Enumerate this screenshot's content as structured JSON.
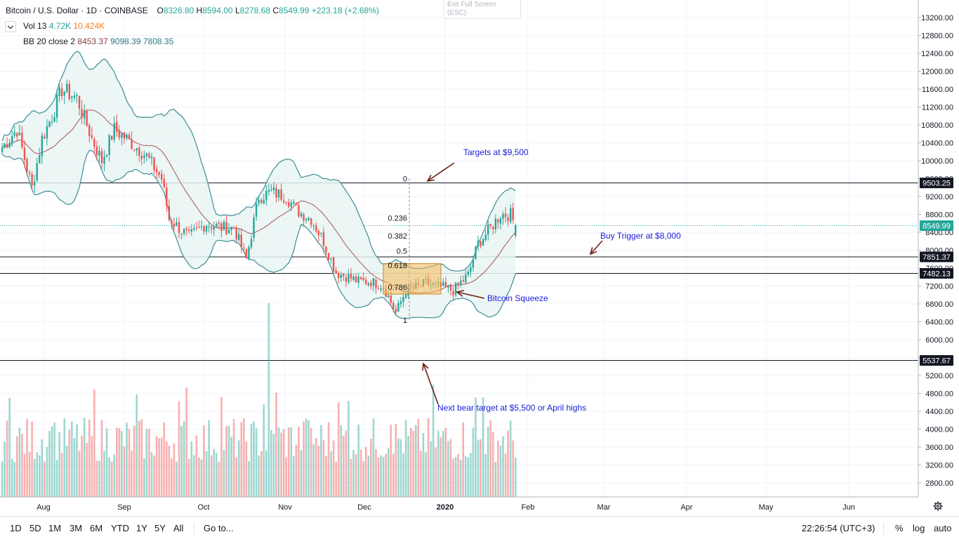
{
  "header": {
    "symbol": "Bitcoin / U.S. Dollar",
    "interval": "1D",
    "exchange": "COINBASE",
    "open_label": "O",
    "open": "8326.80",
    "high_label": "H",
    "high": "8594.00",
    "low_label": "L",
    "low": "8278.68",
    "close_label": "C",
    "close": "8549.99",
    "change": "+223.18 (+2.68%)",
    "vol_label": "Vol 13",
    "vol_value1": "4.72K",
    "vol_value2": "10.424K",
    "bb_label": "BB 20 close 2",
    "bb_mid": "8453.37",
    "bb_upper": "9098.39",
    "bb_lower": "7808.35"
  },
  "exit_fullscreen": {
    "line1": "Exit Full Screen",
    "line2": "(ESC)"
  },
  "colors": {
    "up": "#26a69a",
    "down": "#ef5350",
    "bb_mid": "#b36d6d",
    "bb_band": "#3e8d95",
    "bb_fill": "#e8f5f3",
    "annotation": "#1a1adc",
    "arrow": "#6d1f14",
    "fib_box": "#f6b955"
  },
  "chart_data": {
    "type": "candlestick",
    "symbol": "Bitcoin / U.S. Dollar",
    "interval": "1D",
    "y_axis": {
      "ticks": [
        13200,
        12800,
        12400,
        12000,
        11600,
        11200,
        10800,
        10400,
        10000,
        9600,
        9200,
        8800,
        8400,
        8000,
        7600,
        7200,
        6800,
        6400,
        6000,
        5600,
        5200,
        4800,
        4400,
        4000,
        3600,
        3200,
        2800
      ],
      "tick_labels": [
        "13200.00",
        "12800.00",
        "12400.00",
        "12000.00",
        "11600.00",
        "11200.00",
        "10800.00",
        "10400.00",
        "10000.00",
        "9600.00",
        "9200.00",
        "8800.00",
        "8400.00",
        "8000.00",
        "7600.00",
        "7200.00",
        "6800.00",
        "6400.00",
        "6000.00",
        "5600.00",
        "5200.00",
        "4800.00",
        "4400.00",
        "4000.00",
        "3600.00",
        "3200.00",
        "2800.00"
      ],
      "ylim": [
        2400,
        13400
      ]
    },
    "x_axis": {
      "tick_labels": [
        "Aug",
        "Sep",
        "Oct",
        "Nov",
        "Dec",
        "2020",
        "Feb",
        "Mar",
        "Apr",
        "May",
        "Jun"
      ]
    },
    "price_lines": [
      {
        "label": "9503.25",
        "value": 9503.25,
        "style": "solid"
      },
      {
        "label": "8549.99",
        "value": 8549.99,
        "style": "dotted",
        "current": true
      },
      {
        "label": "7851.37",
        "value": 7851.37,
        "style": "solid"
      },
      {
        "label": "7482.13",
        "value": 7482.13,
        "style": "solid"
      },
      {
        "label": "5537.67",
        "value": 5537.67,
        "style": "solid"
      }
    ],
    "fib_levels": [
      {
        "label": "0",
        "value": 9600
      },
      {
        "label": "0.236",
        "value": 8720
      },
      {
        "label": "0.382",
        "value": 8320
      },
      {
        "label": "0.5",
        "value": 7985
      },
      {
        "label": "0.618",
        "value": 7660
      },
      {
        "label": "0.786",
        "value": 7180
      },
      {
        "label": "1",
        "value": 6440
      }
    ],
    "annotations": [
      {
        "text": "Targets at $9,500"
      },
      {
        "text": "Buy Trigger at $8,000"
      },
      {
        "text": "Bitcoin Squeeze"
      },
      {
        "text": "Next bear target at $5,500 or April highs"
      }
    ],
    "series": [
      {
        "name": "price",
        "waypoints": [
          [
            0,
            10300
          ],
          [
            6,
            10700
          ],
          [
            12,
            9400
          ],
          [
            16,
            10500
          ],
          [
            20,
            11000
          ],
          [
            24,
            11600
          ],
          [
            30,
            11400
          ],
          [
            36,
            10500
          ],
          [
            40,
            10000
          ],
          [
            45,
            10700
          ],
          [
            52,
            10400
          ],
          [
            58,
            10100
          ],
          [
            64,
            9600
          ],
          [
            67,
            8700
          ],
          [
            75,
            8300
          ],
          [
            82,
            8600
          ],
          [
            88,
            8500
          ],
          [
            93,
            8500
          ],
          [
            98,
            7800
          ],
          [
            103,
            9200
          ],
          [
            108,
            9300
          ],
          [
            114,
            9200
          ],
          [
            118,
            8900
          ],
          [
            124,
            8700
          ],
          [
            129,
            8200
          ],
          [
            134,
            7500
          ],
          [
            139,
            7400
          ],
          [
            143,
            7300
          ],
          [
            148,
            7300
          ],
          [
            153,
            7200
          ],
          [
            158,
            6600
          ],
          [
            162,
            7100
          ],
          [
            170,
            7250
          ],
          [
            178,
            7150
          ],
          [
            181,
            7100
          ],
          [
            187,
            7450
          ],
          [
            191,
            8150
          ],
          [
            196,
            8500
          ],
          [
            200,
            8800
          ],
          [
            204,
            8800
          ],
          [
            206,
            8550
          ]
        ]
      }
    ],
    "volume_max_approx": 5200
  },
  "bottom_bar": {
    "ranges": [
      "1D",
      "5D",
      "1M",
      "3M",
      "6M",
      "YTD",
      "1Y",
      "5Y",
      "All"
    ],
    "goto": "Go to...",
    "clock": "22:26:54 (UTC+3)",
    "pct": "%",
    "log": "log",
    "auto": "auto"
  }
}
